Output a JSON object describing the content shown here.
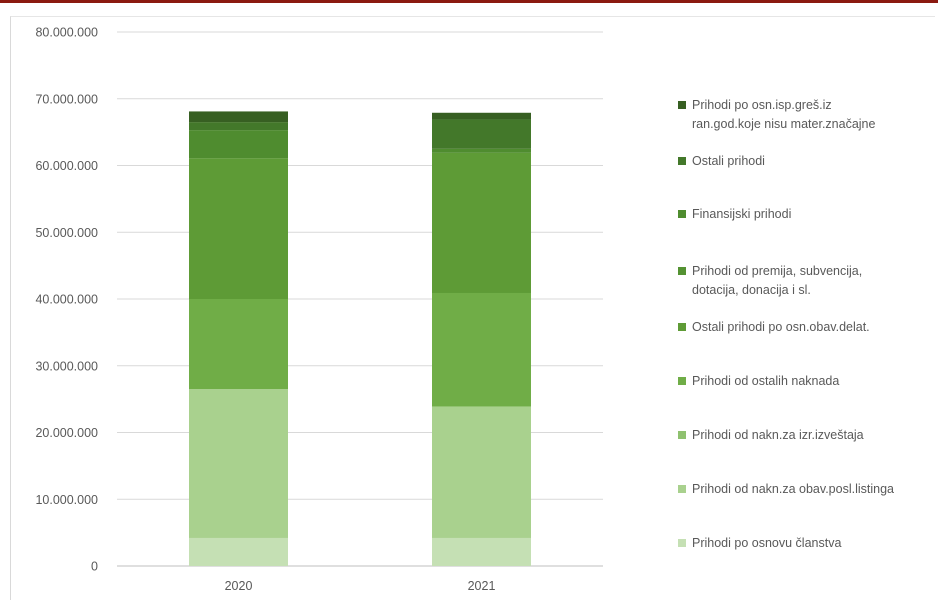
{
  "chart_data": {
    "type": "bar",
    "stacked": true,
    "categories": [
      "2020",
      "2021"
    ],
    "ylim": [
      0,
      80000000
    ],
    "yticks": [
      0,
      10000000,
      20000000,
      30000000,
      40000000,
      50000000,
      60000000,
      70000000,
      80000000
    ],
    "ytick_labels": [
      "0",
      "10.000.000",
      "20.000.000",
      "30.000.000",
      "40.000.000",
      "50.000.000",
      "60.000.000",
      "70.000.000",
      "80.000.000"
    ],
    "grid": true,
    "legend_position": "right",
    "series": [
      {
        "name": "Prihodi po osnovu članstva",
        "color": "#c5e0b4",
        "values": [
          4200000,
          4200000
        ]
      },
      {
        "name": "Prihodi od nakn.za obav.posl.listinga",
        "color": "#a9d18e",
        "values": [
          22300000,
          19700000
        ]
      },
      {
        "name": "Prihodi od nakn.za izr.izveštaja",
        "color": "#8fc16f",
        "values": [
          0,
          0
        ]
      },
      {
        "name": "Prihodi od ostalih naknada",
        "color": "#70ad47",
        "values": [
          13500000,
          17000000
        ]
      },
      {
        "name": "Ostali prihodi po osn.obav.delat.",
        "color": "#5e9b36",
        "values": [
          21100000,
          21000000
        ]
      },
      {
        "name": "Prihodi od premija, subvencija, dotacija, donacija i sl.",
        "color": "#549232",
        "values": [
          0,
          0
        ]
      },
      {
        "name": "Finansijski prihodi",
        "color": "#4f8c2f",
        "values": [
          4200000,
          600000
        ]
      },
      {
        "name": "Ostali prihodi",
        "color": "#43782a",
        "values": [
          1200000,
          4400000
        ]
      },
      {
        "name": "Prihodi po osn.isp.greš.iz ran.god.koje nisu mater.značajne",
        "color": "#375f22",
        "values": [
          1600000,
          1000000
        ]
      }
    ]
  },
  "legend": {
    "items": [
      {
        "line1": "Prihodi po osn.isp.greš.iz",
        "line2": "ran.god.koje nisu mater.značajne",
        "color": "#375f22"
      },
      {
        "line1": "Ostali prihodi",
        "line2": "",
        "color": "#43782a"
      },
      {
        "line1": "Finansijski prihodi",
        "line2": "",
        "color": "#4f8c2f"
      },
      {
        "line1": "Prihodi od premija, subvencija,",
        "line2": "dotacija, donacija i sl.",
        "color": "#549232"
      },
      {
        "line1": "Ostali prihodi po osn.obav.delat.",
        "line2": "",
        "color": "#5e9b36"
      },
      {
        "line1": "Prihodi od ostalih naknada",
        "line2": "",
        "color": "#70ad47"
      },
      {
        "line1": "Prihodi od nakn.za izr.izveštaja",
        "line2": "",
        "color": "#8fc16f"
      },
      {
        "line1": "Prihodi od nakn.za obav.posl.listinga",
        "line2": "",
        "color": "#a9d18e"
      },
      {
        "line1": "Prihodi po osnovu članstva",
        "line2": "",
        "color": "#c5e0b4"
      }
    ]
  }
}
